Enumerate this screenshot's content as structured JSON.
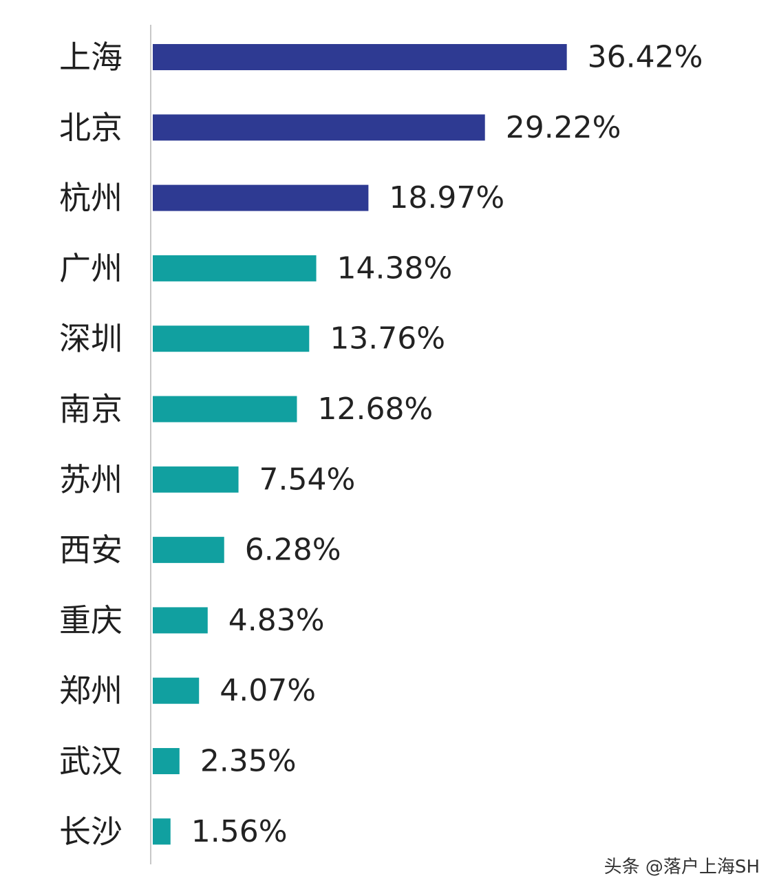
{
  "chart_data": {
    "type": "bar",
    "orientation": "horizontal",
    "categories": [
      "上海",
      "北京",
      "杭州",
      "广州",
      "深圳",
      "南京",
      "苏州",
      "西安",
      "重庆",
      "郑州",
      "武汉",
      "长沙"
    ],
    "values": [
      36.42,
      29.22,
      18.97,
      14.38,
      13.76,
      12.68,
      7.54,
      6.28,
      4.83,
      4.07,
      2.35,
      1.56
    ],
    "value_labels": [
      "36.42%",
      "29.22%",
      "18.97%",
      "14.38%",
      "13.76%",
      "12.68%",
      "7.54%",
      "6.28%",
      "4.83%",
      "4.07%",
      "2.35%",
      "1.56%"
    ],
    "bar_colors": [
      "#2e3a92",
      "#2e3a92",
      "#2e3a92",
      "#11a0a0",
      "#11a0a0",
      "#11a0a0",
      "#11a0a0",
      "#11a0a0",
      "#11a0a0",
      "#11a0a0",
      "#11a0a0",
      "#11a0a0"
    ],
    "axis_color": "#c8c8c8",
    "title": "",
    "xlabel": "",
    "ylabel": "",
    "grid": false,
    "legend": "none"
  },
  "watermark": {
    "text": "头条 @落户上海SH"
  }
}
